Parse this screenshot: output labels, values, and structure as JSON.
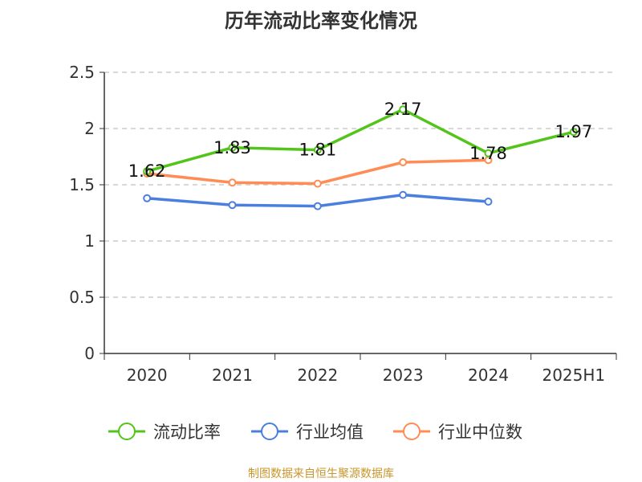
{
  "chart_data": {
    "type": "line",
    "title": "历年流动比率变化情况",
    "categories": [
      "2020",
      "2021",
      "2022",
      "2023",
      "2024",
      "2025H1"
    ],
    "ylim": [
      0,
      2.5
    ],
    "yticks": [
      "0",
      "0.5",
      "1",
      "1.5",
      "2",
      "2.5"
    ],
    "grid": true,
    "legend": "bottom",
    "series": [
      {
        "name": "流动比率",
        "color": "#52c41a",
        "values": [
          1.62,
          1.83,
          1.81,
          2.17,
          1.78,
          1.97
        ],
        "labels": [
          "1.62",
          "1.83",
          "1.81",
          "2.17",
          "1.78",
          "1.97"
        ]
      },
      {
        "name": "行业均值",
        "color": "#4a7fe0",
        "values": [
          1.38,
          1.32,
          1.31,
          1.41,
          1.35,
          null
        ]
      },
      {
        "name": "行业中位数",
        "color": "#ff8c55",
        "values": [
          1.6,
          1.52,
          1.51,
          1.7,
          1.72,
          null
        ]
      }
    ]
  },
  "source": "制图数据来自恒生聚源数据库"
}
